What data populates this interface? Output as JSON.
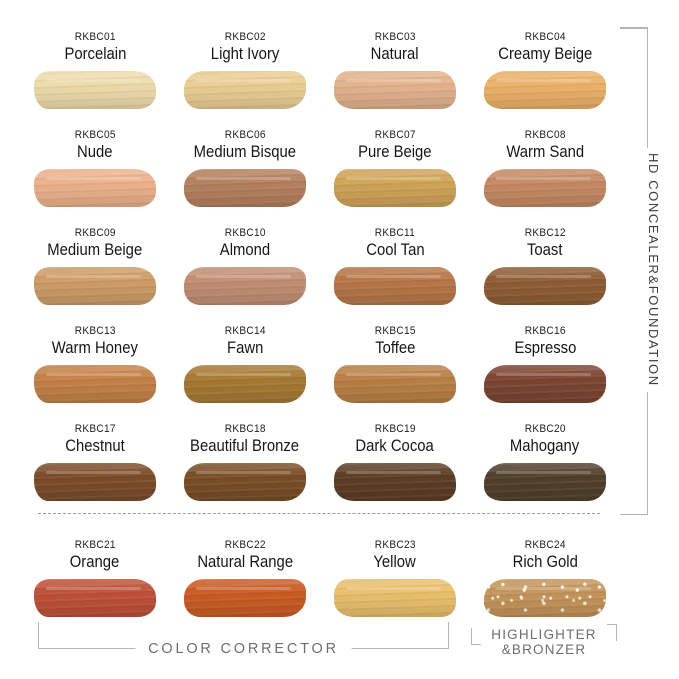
{
  "page": {
    "background": "#ffffff"
  },
  "right_section": {
    "label": "HD CONCEALER&FOUNDATION"
  },
  "bottom_sections": {
    "color_corrector": "COLOR CORRECTOR",
    "highlighter_line1": "HIGHLIGHTER",
    "highlighter_line2": "&BRONZER"
  },
  "colors": {
    "bracket_line": "#b5b5b5",
    "section_text": "#6e6e6e",
    "vertical_text": "#3d3d3d",
    "label_text": "#1a1a1a",
    "dashed_line": "#9a9a9a"
  },
  "swatches": [
    {
      "code": "RKBC01",
      "name": "Porcelain",
      "color": "#efdcab"
    },
    {
      "code": "RKBC02",
      "name": "Light Ivory",
      "color": "#ebce92"
    },
    {
      "code": "RKBC03",
      "name": "Natural",
      "color": "#e4b38d"
    },
    {
      "code": "RKBC04",
      "name": "Creamy Beige",
      "color": "#ecb269"
    },
    {
      "code": "RKBC05",
      "name": "Nude",
      "color": "#edb28c"
    },
    {
      "code": "RKBC06",
      "name": "Medium Bisque",
      "color": "#b5805e"
    },
    {
      "code": "RKBC07",
      "name": "Pure Beige",
      "color": "#d1a457"
    },
    {
      "code": "RKBC08",
      "name": "Warm Sand",
      "color": "#c68a64"
    },
    {
      "code": "RKBC09",
      "name": "Medium Beige",
      "color": "#cf9d67"
    },
    {
      "code": "RKBC10",
      "name": "Almond",
      "color": "#c28f74"
    },
    {
      "code": "RKBC11",
      "name": "Cool Tan",
      "color": "#b87747"
    },
    {
      "code": "RKBC12",
      "name": "Toast",
      "color": "#8f5e35"
    },
    {
      "code": "RKBC13",
      "name": "Warm Honey",
      "color": "#c58247"
    },
    {
      "code": "RKBC14",
      "name": "Fawn",
      "color": "#a87a33"
    },
    {
      "code": "RKBC15",
      "name": "Toffee",
      "color": "#ba8045"
    },
    {
      "code": "RKBC16",
      "name": "Espresso",
      "color": "#7d4632"
    },
    {
      "code": "RKBC17",
      "name": "Chestnut",
      "color": "#7d4d2a"
    },
    {
      "code": "RKBC18",
      "name": "Beautiful Bronze",
      "color": "#7a4f28"
    },
    {
      "code": "RKBC19",
      "name": "Dark Cocoa",
      "color": "#5e3e26"
    },
    {
      "code": "RKBC20",
      "name": "Mahogany",
      "color": "#52402c"
    },
    {
      "code": "RKBC21",
      "name": "Orange",
      "color": "#c05138"
    },
    {
      "code": "RKBC22",
      "name": "Natural Range",
      "color": "#cc5c24"
    },
    {
      "code": "RKBC23",
      "name": "Yellow",
      "color": "#eac06c"
    },
    {
      "code": "RKBC24",
      "name": "Rich Gold",
      "color": "#c5955a",
      "sparkle": true
    }
  ]
}
